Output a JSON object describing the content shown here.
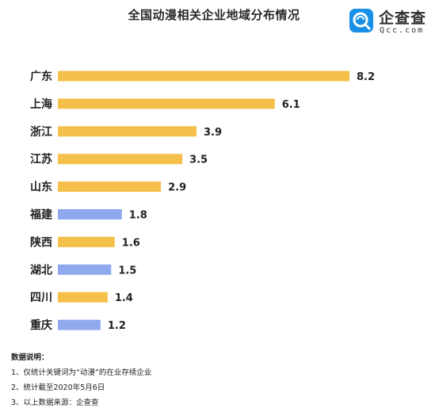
{
  "title": "全国动漫相关企业地域分布情况",
  "logo": {
    "name": "企查查",
    "domain": "Qcc.com"
  },
  "colors": {
    "yellow": "#F5C04A",
    "blue": "#8FA8EE",
    "text": "#222222"
  },
  "chart_data": {
    "type": "bar",
    "orientation": "horizontal",
    "title": "全国动漫相关企业地域分布情况",
    "categories": [
      "广东",
      "上海",
      "浙江",
      "江苏",
      "山东",
      "福建",
      "陕西",
      "湖北",
      "四川",
      "重庆"
    ],
    "values": [
      8.2,
      6.1,
      3.9,
      3.5,
      2.9,
      1.8,
      1.6,
      1.5,
      1.4,
      1.2
    ],
    "bar_colors": [
      "#F5C04A",
      "#F5C04A",
      "#F5C04A",
      "#F5C04A",
      "#F5C04A",
      "#8FA8EE",
      "#F5C04A",
      "#8FA8EE",
      "#F5C04A",
      "#8FA8EE"
    ],
    "xlim": [
      0,
      8.2
    ],
    "grid": false,
    "legend": "none"
  },
  "notes": {
    "heading": "数据说明：",
    "items": [
      "1、仅统计关键词为“动漫”的在业存续企业",
      "2、统计截至2020年5月6日",
      "3、以上数据来源：企查查"
    ]
  }
}
